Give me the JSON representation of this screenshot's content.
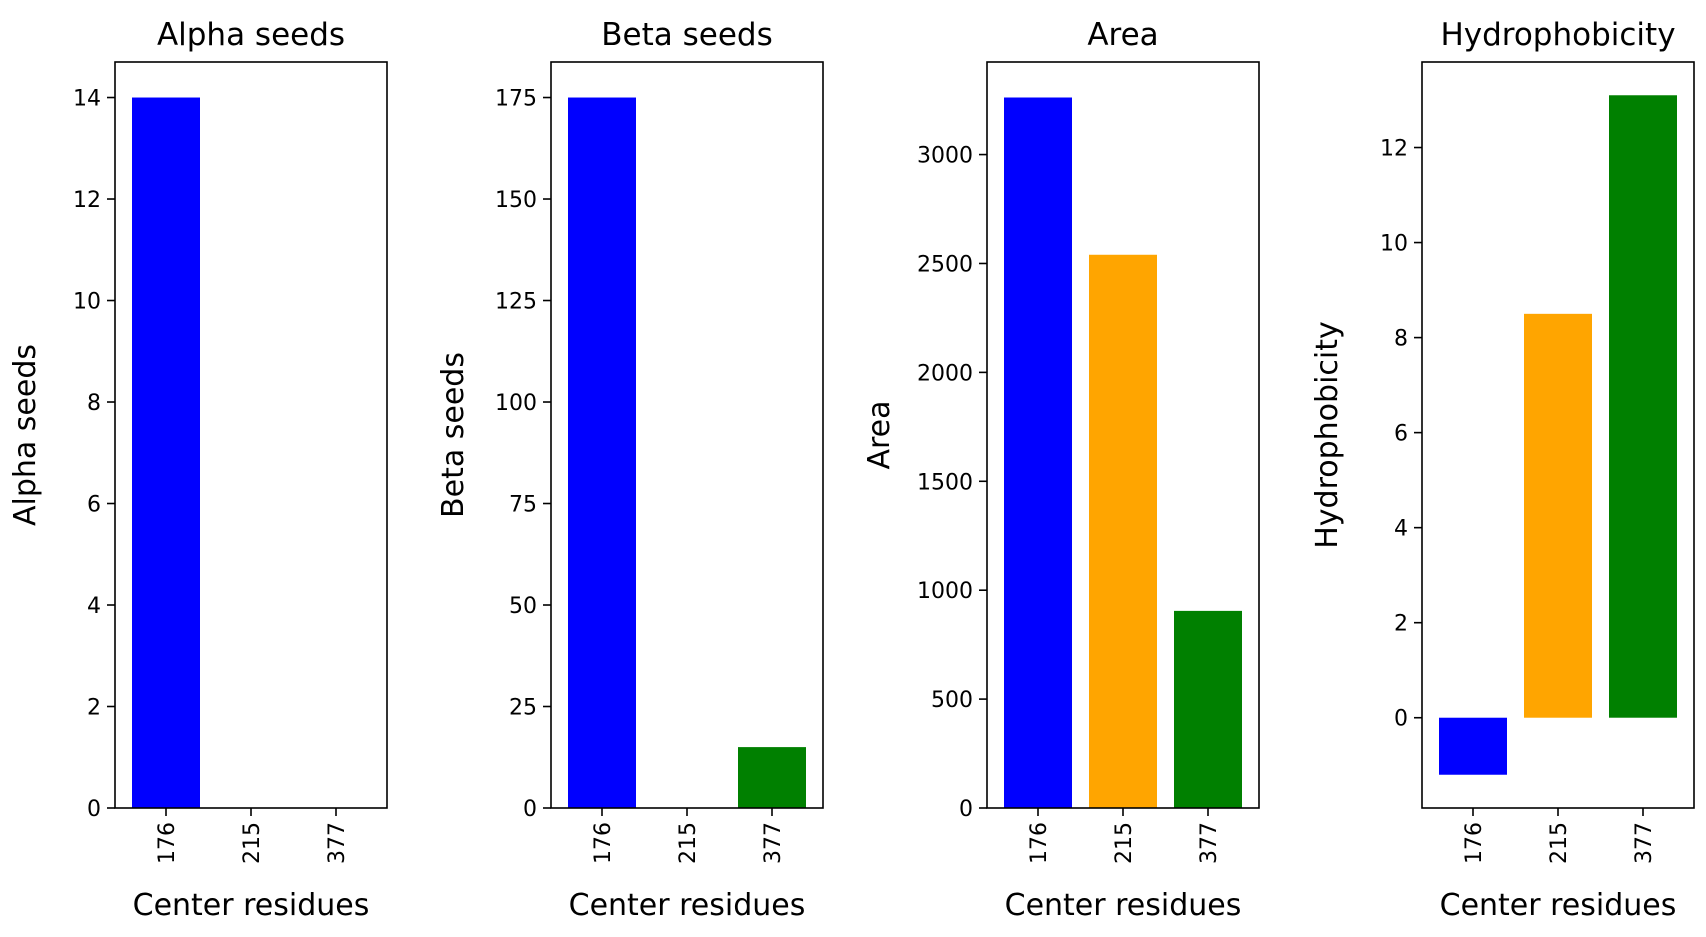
{
  "chart_data": [
    {
      "type": "bar",
      "title": "Alpha seeds",
      "xlabel": "Center residues",
      "ylabel": "Alpha seeds",
      "categories": [
        "176",
        "215",
        "377"
      ],
      "values": [
        14,
        0,
        0
      ],
      "colors": [
        "#0000ff",
        "#ffa500",
        "#008000"
      ],
      "ylim": [
        0,
        14.7
      ],
      "yticks": [
        0,
        2,
        4,
        6,
        8,
        10,
        12,
        14
      ],
      "ytick_labels": [
        "0",
        "2",
        "4",
        "6",
        "8",
        "10",
        "12",
        "14"
      ],
      "grid": false
    },
    {
      "type": "bar",
      "title": "Beta seeds",
      "xlabel": "Center residues",
      "ylabel": "Beta seeds",
      "categories": [
        "176",
        "215",
        "377"
      ],
      "values": [
        175,
        0,
        15
      ],
      "colors": [
        "#0000ff",
        "#ffa500",
        "#008000"
      ],
      "ylim": [
        0,
        183.75
      ],
      "yticks": [
        0,
        25,
        50,
        75,
        100,
        125,
        150,
        175
      ],
      "ytick_labels": [
        "0",
        "25",
        "50",
        "75",
        "100",
        "125",
        "150",
        "175"
      ],
      "grid": false
    },
    {
      "type": "bar",
      "title": "Area",
      "xlabel": "Center residues",
      "ylabel": "Area",
      "categories": [
        "176",
        "215",
        "377"
      ],
      "values": [
        3262,
        2540,
        905
      ],
      "colors": [
        "#0000ff",
        "#ffa500",
        "#008000"
      ],
      "ylim": [
        0,
        3425
      ],
      "yticks": [
        0,
        500,
        1000,
        1500,
        2000,
        2500,
        3000
      ],
      "ytick_labels": [
        "0",
        "500",
        "1000",
        "1500",
        "2000",
        "2500",
        "3000"
      ],
      "grid": false
    },
    {
      "type": "bar",
      "title": "Hydrophobicity",
      "xlabel": "Center residues",
      "ylabel": "Hydrophobicity",
      "categories": [
        "176",
        "215",
        "377"
      ],
      "values": [
        -1.2,
        8.5,
        13.1
      ],
      "colors": [
        "#0000ff",
        "#ffa500",
        "#008000"
      ],
      "ylim": [
        -1.9,
        13.8
      ],
      "yticks": [
        0,
        2,
        4,
        6,
        8,
        10,
        12
      ],
      "ytick_labels": [
        "0",
        "2",
        "4",
        "6",
        "8",
        "10",
        "12"
      ],
      "grid": false
    }
  ]
}
